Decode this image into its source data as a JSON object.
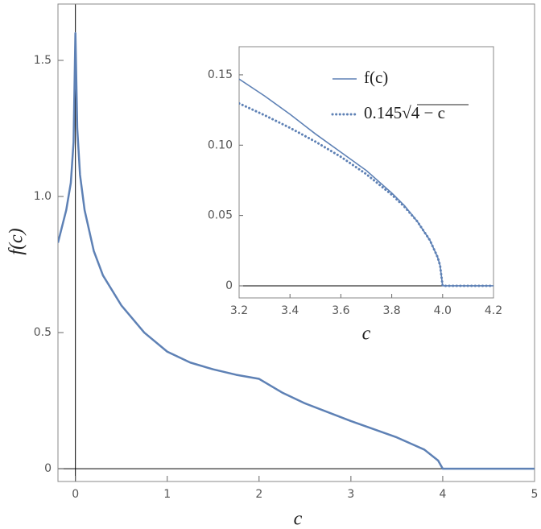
{
  "chart_data": [
    {
      "type": "line",
      "xlabel": "c",
      "ylabel": "f(c)",
      "x": [
        -0.19,
        -0.1,
        -0.05,
        -0.02,
        0,
        0.02,
        0.05,
        0.1,
        0.2,
        0.3,
        0.5,
        0.75,
        1,
        1.25,
        1.5,
        1.75,
        2,
        2.25,
        2.5,
        3,
        3.5,
        3.8,
        3.95,
        4,
        4.5,
        5
      ],
      "series": [
        {
          "color": "#5e81b5",
          "style": "solid",
          "values": [
            0.83,
            0.95,
            1.05,
            1.2,
            1.6,
            1.25,
            1.08,
            0.95,
            0.8,
            0.71,
            0.6,
            0.5,
            0.43,
            0.39,
            0.365,
            0.345,
            0.33,
            0.28,
            0.24,
            0.175,
            0.115,
            0.07,
            0.03,
            0,
            0,
            0
          ]
        }
      ],
      "xlim": [
        -0.19,
        5
      ],
      "ylim": [
        -0.047,
        1.707
      ],
      "xticks": [
        0,
        1,
        2,
        3,
        4,
        5
      ],
      "yticks": [
        0,
        0.5,
        {
          "value": 1,
          "label": "1.0"
        },
        1.5
      ],
      "origin_axes": true
    },
    {
      "type": "line",
      "xlabel": "c",
      "x": [
        3.2,
        3.3,
        3.4,
        3.5,
        3.6,
        3.7,
        3.8,
        3.85,
        3.9,
        3.95,
        3.98,
        3.99,
        4.0,
        4.1,
        4.2
      ],
      "series": [
        {
          "name": "f(c)",
          "color": "#5e81b5",
          "style": "solid",
          "values": [
            0.147,
            0.135,
            0.122,
            0.108,
            0.095,
            0.082,
            0.066,
            0.057,
            0.0459,
            0.0324,
            0.0205,
            0.0145,
            0,
            0,
            0
          ]
        },
        {
          "name": "0.145√4 − c",
          "color": "#5e81b5",
          "style": "dotted",
          "values": [
            0.1297,
            0.1213,
            0.1123,
            0.1025,
            0.0917,
            0.0794,
            0.0648,
            0.0562,
            0.0459,
            0.0324,
            0.0205,
            0.0145,
            0,
            0,
            0
          ]
        }
      ],
      "xlim": [
        3.2,
        4.2
      ],
      "ylim": [
        -0.0086,
        0.17
      ],
      "xticks": [
        3.2,
        3.4,
        3.6,
        3.8,
        {
          "value": 4,
          "label": "4.0"
        },
        4.2
      ],
      "yticks": [
        0,
        0.05,
        {
          "value": 0.1,
          "label": "0.10"
        },
        0.15
      ],
      "legend": "top-right",
      "origin_axes": true
    }
  ]
}
